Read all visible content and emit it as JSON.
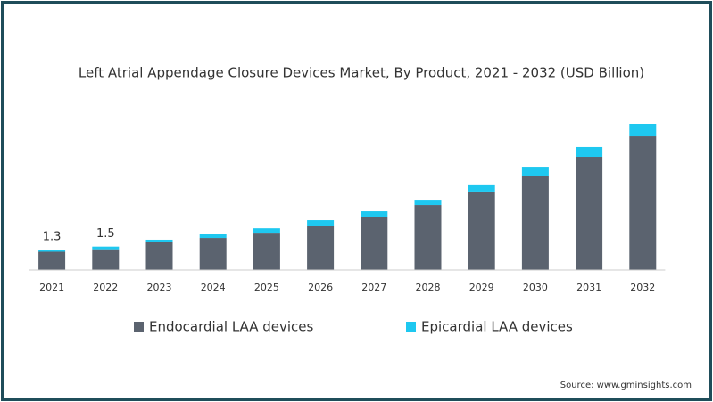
{
  "chart_data": {
    "type": "stacked-bar",
    "title": "Left Atrial Appendage Closure Devices Market, By Product, 2021 - 2032 (USD Billion)",
    "categories": [
      "2021",
      "2022",
      "2023",
      "2024",
      "2025",
      "2026",
      "2027",
      "2028",
      "2029",
      "2030",
      "2031",
      "2032"
    ],
    "series": [
      {
        "name": "Endocardial LAA devices",
        "color": "#5b636f",
        "values": [
          1.17,
          1.33,
          1.77,
          2.05,
          2.39,
          2.85,
          3.42,
          4.16,
          5.02,
          6.04,
          7.24,
          8.55
        ]
      },
      {
        "name": "Epicardial LAA devices",
        "color": "#1ec8f0",
        "values": [
          0.13,
          0.17,
          0.17,
          0.23,
          0.28,
          0.34,
          0.34,
          0.34,
          0.46,
          0.57,
          0.63,
          0.8
        ]
      }
    ],
    "total_labels": [
      1.3,
      1.5
    ],
    "source": "Source: www.gminsights.com"
  }
}
